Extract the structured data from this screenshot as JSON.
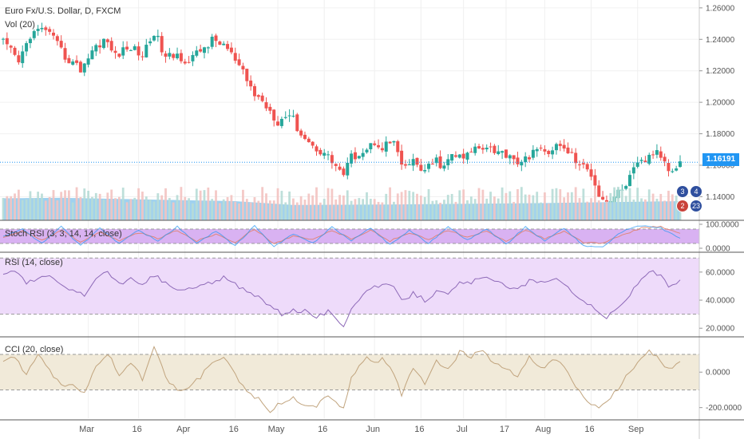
{
  "chart_data": {
    "type": "candlestick",
    "title": "Euro Fx/U.S. Dollar, D, FXCM",
    "volume_label": "Vol (20)",
    "last_price_label": "1.16191",
    "x_ticks": [
      "Mar",
      "16",
      "Apr",
      "16",
      "May",
      "16",
      "Jun",
      "16",
      "Jul",
      "17",
      "Aug",
      "16",
      "Sep"
    ],
    "price_axis": {
      "ylim": [
        1.125,
        1.265
      ],
      "ticks": [
        "1.26000",
        "1.24000",
        "1.22000",
        "1.20000",
        "1.18000",
        "1.16000",
        "1.14000"
      ],
      "tick_values": [
        1.26,
        1.24,
        1.22,
        1.2,
        1.18,
        1.16,
        1.14
      ]
    },
    "price_anchors": [
      [
        0,
        1.238
      ],
      [
        2,
        1.232
      ],
      [
        4,
        1.225
      ],
      [
        7,
        1.243
      ],
      [
        11,
        1.247
      ],
      [
        14,
        1.236
      ],
      [
        16,
        1.229
      ],
      [
        20,
        1.221
      ],
      [
        23,
        1.233
      ],
      [
        26,
        1.24
      ],
      [
        29,
        1.23
      ],
      [
        33,
        1.235
      ],
      [
        36,
        1.23
      ],
      [
        39,
        1.245
      ],
      [
        42,
        1.228
      ],
      [
        45,
        1.23
      ],
      [
        48,
        1.226
      ],
      [
        51,
        1.233
      ],
      [
        54,
        1.239
      ],
      [
        57,
        1.237
      ],
      [
        59,
        1.23
      ],
      [
        62,
        1.218
      ],
      [
        65,
        1.205
      ],
      [
        68,
        1.198
      ],
      [
        71,
        1.188
      ],
      [
        74,
        1.193
      ],
      [
        77,
        1.18
      ],
      [
        80,
        1.172
      ],
      [
        83,
        1.168
      ],
      [
        86,
        1.16
      ],
      [
        88,
        1.154
      ],
      [
        90,
        1.165
      ],
      [
        92,
        1.168
      ],
      [
        94,
        1.17
      ],
      [
        96,
        1.175
      ],
      [
        98,
        1.172
      ],
      [
        101,
        1.175
      ],
      [
        103,
        1.158
      ],
      [
        106,
        1.162
      ],
      [
        109,
        1.156
      ],
      [
        112,
        1.163
      ],
      [
        114,
        1.158
      ],
      [
        116,
        1.167
      ],
      [
        119,
        1.164
      ],
      [
        122,
        1.171
      ],
      [
        125,
        1.173
      ],
      [
        128,
        1.168
      ],
      [
        131,
        1.167
      ],
      [
        134,
        1.16
      ],
      [
        137,
        1.17
      ],
      [
        140,
        1.168
      ],
      [
        143,
        1.172
      ],
      [
        146,
        1.169
      ],
      [
        149,
        1.16
      ],
      [
        152,
        1.155
      ],
      [
        154,
        1.142
      ],
      [
        156,
        1.137
      ],
      [
        158,
        1.14
      ],
      [
        160,
        1.145
      ],
      [
        162,
        1.152
      ],
      [
        164,
        1.16
      ],
      [
        166,
        1.163
      ],
      [
        168,
        1.168
      ],
      [
        170,
        1.166
      ],
      [
        172,
        1.158
      ],
      [
        174,
        1.16
      ],
      [
        175,
        1.162
      ]
    ],
    "volume_ma_anchors": [
      [
        0,
        0.46
      ],
      [
        15,
        0.47
      ],
      [
        40,
        0.43
      ],
      [
        60,
        0.4
      ],
      [
        75,
        0.32
      ],
      [
        100,
        0.33
      ],
      [
        140,
        0.36
      ],
      [
        175,
        0.4
      ]
    ],
    "stoch_rsi": {
      "label": "Stoch RSI (3, 3, 14, 14, close)",
      "ylim": [
        -10,
        110
      ],
      "bands": [
        20,
        80
      ],
      "ticks": [
        "100.0000",
        "0.0000"
      ],
      "tick_values": [
        100,
        0
      ],
      "k_anchors": [
        [
          0,
          50
        ],
        [
          5,
          80
        ],
        [
          10,
          20
        ],
        [
          15,
          90
        ],
        [
          20,
          10
        ],
        [
          25,
          85
        ],
        [
          30,
          20
        ],
        [
          35,
          75
        ],
        [
          40,
          30
        ],
        [
          45,
          90
        ],
        [
          50,
          20
        ],
        [
          55,
          70
        ],
        [
          60,
          10
        ],
        [
          65,
          95
        ],
        [
          70,
          5
        ],
        [
          75,
          60
        ],
        [
          80,
          20
        ],
        [
          85,
          90
        ],
        [
          90,
          30
        ],
        [
          95,
          85
        ],
        [
          100,
          15
        ],
        [
          105,
          75
        ],
        [
          110,
          20
        ],
        [
          115,
          90
        ],
        [
          120,
          35
        ],
        [
          125,
          80
        ],
        [
          130,
          15
        ],
        [
          135,
          90
        ],
        [
          140,
          30
        ],
        [
          145,
          85
        ],
        [
          150,
          10
        ],
        [
          155,
          5
        ],
        [
          160,
          70
        ],
        [
          165,
          95
        ],
        [
          170,
          85
        ],
        [
          175,
          40
        ]
      ],
      "d_anchors": [
        [
          0,
          45
        ],
        [
          5,
          70
        ],
        [
          10,
          35
        ],
        [
          15,
          75
        ],
        [
          20,
          25
        ],
        [
          25,
          70
        ],
        [
          30,
          30
        ],
        [
          35,
          65
        ],
        [
          40,
          40
        ],
        [
          45,
          75
        ],
        [
          50,
          30
        ],
        [
          55,
          60
        ],
        [
          60,
          25
        ],
        [
          65,
          80
        ],
        [
          70,
          20
        ],
        [
          75,
          50
        ],
        [
          80,
          35
        ],
        [
          85,
          75
        ],
        [
          90,
          40
        ],
        [
          95,
          75
        ],
        [
          100,
          30
        ],
        [
          105,
          65
        ],
        [
          110,
          35
        ],
        [
          115,
          75
        ],
        [
          120,
          45
        ],
        [
          125,
          70
        ],
        [
          130,
          30
        ],
        [
          135,
          75
        ],
        [
          140,
          40
        ],
        [
          145,
          70
        ],
        [
          150,
          25
        ],
        [
          155,
          20
        ],
        [
          160,
          55
        ],
        [
          165,
          85
        ],
        [
          170,
          90
        ],
        [
          175,
          60
        ]
      ]
    },
    "rsi": {
      "label": "RSI (14, close)",
      "ylim": [
        15,
        73
      ],
      "bands": [
        30,
        70
      ],
      "ticks": [
        "60.0000",
        "40.0000",
        "20.0000"
      ],
      "tick_values": [
        60,
        40,
        20
      ],
      "anchors": [
        [
          0,
          59
        ],
        [
          3,
          62
        ],
        [
          6,
          52
        ],
        [
          9,
          55
        ],
        [
          12,
          58
        ],
        [
          15,
          50
        ],
        [
          18,
          47
        ],
        [
          21,
          44
        ],
        [
          24,
          55
        ],
        [
          27,
          60
        ],
        [
          30,
          52
        ],
        [
          33,
          55
        ],
        [
          36,
          50
        ],
        [
          39,
          58
        ],
        [
          42,
          52
        ],
        [
          45,
          47
        ],
        [
          48,
          48
        ],
        [
          51,
          50
        ],
        [
          54,
          53
        ],
        [
          57,
          56
        ],
        [
          60,
          51
        ],
        [
          63,
          46
        ],
        [
          66,
          42
        ],
        [
          69,
          36
        ],
        [
          72,
          30
        ],
        [
          75,
          33
        ],
        [
          78,
          32
        ],
        [
          81,
          28
        ],
        [
          84,
          32
        ],
        [
          86,
          26
        ],
        [
          88,
          22
        ],
        [
          90,
          35
        ],
        [
          92,
          41
        ],
        [
          94,
          47
        ],
        [
          96,
          49
        ],
        [
          98,
          51
        ],
        [
          101,
          49
        ],
        [
          103,
          39
        ],
        [
          106,
          45
        ],
        [
          109,
          40
        ],
        [
          112,
          46
        ],
        [
          115,
          44
        ],
        [
          118,
          52
        ],
        [
          121,
          53
        ],
        [
          124,
          56
        ],
        [
          127,
          53
        ],
        [
          130,
          51
        ],
        [
          133,
          47
        ],
        [
          136,
          54
        ],
        [
          139,
          52
        ],
        [
          142,
          56
        ],
        [
          145,
          52
        ],
        [
          148,
          44
        ],
        [
          151,
          38
        ],
        [
          154,
          31
        ],
        [
          156,
          28
        ],
        [
          158,
          32
        ],
        [
          161,
          40
        ],
        [
          164,
          52
        ],
        [
          167,
          61
        ],
        [
          170,
          57
        ],
        [
          172,
          50
        ],
        [
          174,
          51
        ],
        [
          175,
          54
        ]
      ]
    },
    "cci": {
      "label": "CCI (20, close)",
      "ylim": [
        -260,
        190
      ],
      "bands": [
        -100,
        100
      ],
      "ticks": [
        "0.0000",
        "-200.0000"
      ],
      "tick_values": [
        0,
        -200
      ],
      "anchors": [
        [
          0,
          50
        ],
        [
          3,
          90
        ],
        [
          6,
          -20
        ],
        [
          9,
          110
        ],
        [
          12,
          10
        ],
        [
          15,
          -80
        ],
        [
          18,
          -60
        ],
        [
          21,
          -120
        ],
        [
          24,
          40
        ],
        [
          27,
          110
        ],
        [
          30,
          -20
        ],
        [
          33,
          60
        ],
        [
          36,
          -40
        ],
        [
          39,
          150
        ],
        [
          42,
          -30
        ],
        [
          45,
          -110
        ],
        [
          48,
          -80
        ],
        [
          51,
          -30
        ],
        [
          54,
          60
        ],
        [
          57,
          80
        ],
        [
          60,
          -20
        ],
        [
          63,
          -110
        ],
        [
          66,
          -150
        ],
        [
          69,
          -220
        ],
        [
          72,
          -170
        ],
        [
          75,
          -150
        ],
        [
          78,
          -180
        ],
        [
          81,
          -190
        ],
        [
          84,
          -130
        ],
        [
          86,
          -170
        ],
        [
          88,
          -200
        ],
        [
          90,
          -40
        ],
        [
          92,
          40
        ],
        [
          94,
          90
        ],
        [
          96,
          60
        ],
        [
          98,
          70
        ],
        [
          101,
          -10
        ],
        [
          103,
          -130
        ],
        [
          106,
          20
        ],
        [
          109,
          -60
        ],
        [
          112,
          70
        ],
        [
          115,
          10
        ],
        [
          118,
          110
        ],
        [
          121,
          90
        ],
        [
          124,
          120
        ],
        [
          127,
          40
        ],
        [
          130,
          20
        ],
        [
          133,
          -30
        ],
        [
          136,
          80
        ],
        [
          139,
          20
        ],
        [
          142,
          70
        ],
        [
          145,
          30
        ],
        [
          148,
          -80
        ],
        [
          151,
          -160
        ],
        [
          154,
          -210
        ],
        [
          156,
          -170
        ],
        [
          158,
          -120
        ],
        [
          161,
          -30
        ],
        [
          164,
          60
        ],
        [
          167,
          130
        ],
        [
          170,
          60
        ],
        [
          172,
          20
        ],
        [
          174,
          40
        ],
        [
          175,
          50
        ]
      ]
    }
  },
  "overlays": {
    "event_badges": [
      {
        "text": "3",
        "color": "#2f4f9e"
      },
      {
        "text": "4",
        "color": "#2f4f9e"
      },
      {
        "text": "2",
        "color": "#c9423a"
      },
      {
        "text": "23",
        "color": "#2f4f9e"
      }
    ]
  },
  "colors": {
    "up": "#26a69a",
    "down": "#ef5350",
    "volume_up": "#b7dcd6",
    "volume_down": "#f3c3c1",
    "volume_ma": "#8ec9ec",
    "stoch_bg": "#d9b2f2",
    "stoch_k": "#2196f3",
    "stoch_d": "#e07a5f",
    "rsi_bg": "#eedbfa",
    "rsi_line": "#8e6ab8",
    "cci_bg": "#f1ead9",
    "cci_line": "#c1a47e",
    "axis_text": "#555555",
    "tag": "#2196f3"
  }
}
